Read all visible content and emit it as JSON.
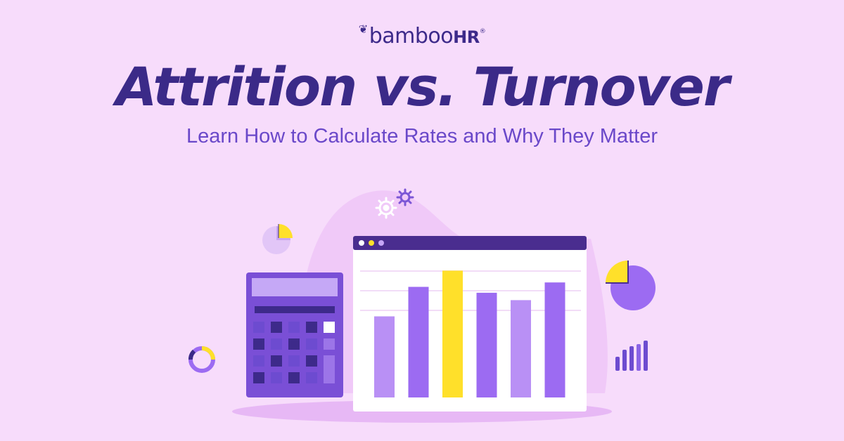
{
  "brand": {
    "name": "bamboo",
    "suffix": "HR",
    "mark": "®"
  },
  "headline": "Attrition vs. Turnover",
  "subheadline": "Learn How to Calculate Rates and Why They Matter",
  "colors": {
    "background": "#f7dcfb",
    "dark_purple": "#3b2a88",
    "purple": "#9c6bf2",
    "light_purple": "#b990f5",
    "yellow": "#ffe02a",
    "window_bar": "#4a2d8f"
  },
  "illustration": {
    "icons": [
      "gear-icon",
      "pie-chart-icon",
      "donut-chart-icon",
      "bar-chart-icon",
      "calculator-icon",
      "browser-window-icon"
    ],
    "bar_levels": [
      0.55,
      0.75,
      0.86,
      0.71,
      0.66,
      0.78
    ]
  }
}
